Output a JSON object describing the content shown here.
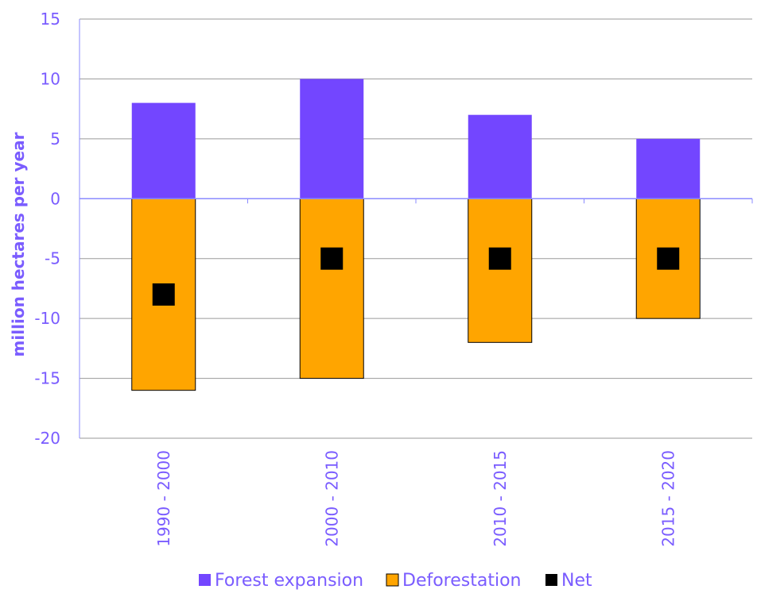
{
  "chart_data": {
    "type": "bar",
    "categories": [
      "1990 - 2000",
      "2000 - 2010",
      "2010 - 2015",
      "2015 - 2020"
    ],
    "series": [
      {
        "name": "Forest expansion",
        "type": "bar",
        "values": [
          8,
          10,
          7,
          5
        ],
        "color": "#7346ff"
      },
      {
        "name": "Deforestation",
        "type": "bar",
        "values": [
          -16,
          -15,
          -12,
          -10
        ],
        "color": "#ffa500",
        "stroke": "#000000"
      },
      {
        "name": "Net",
        "type": "marker",
        "values": [
          -8,
          -5,
          -5,
          -5
        ],
        "color": "#000000"
      }
    ],
    "ylabel": "million hectares per year",
    "ylim": [
      -20,
      15
    ],
    "yticks": [
      "15",
      "10",
      "5",
      "0",
      "-5",
      "-10",
      "-15",
      "-20"
    ],
    "grid": true,
    "legend_position": "bottom",
    "colors": {
      "text": "#7a5cff",
      "gridline": "#9a9a9a",
      "axis": "#8b8bff"
    }
  }
}
